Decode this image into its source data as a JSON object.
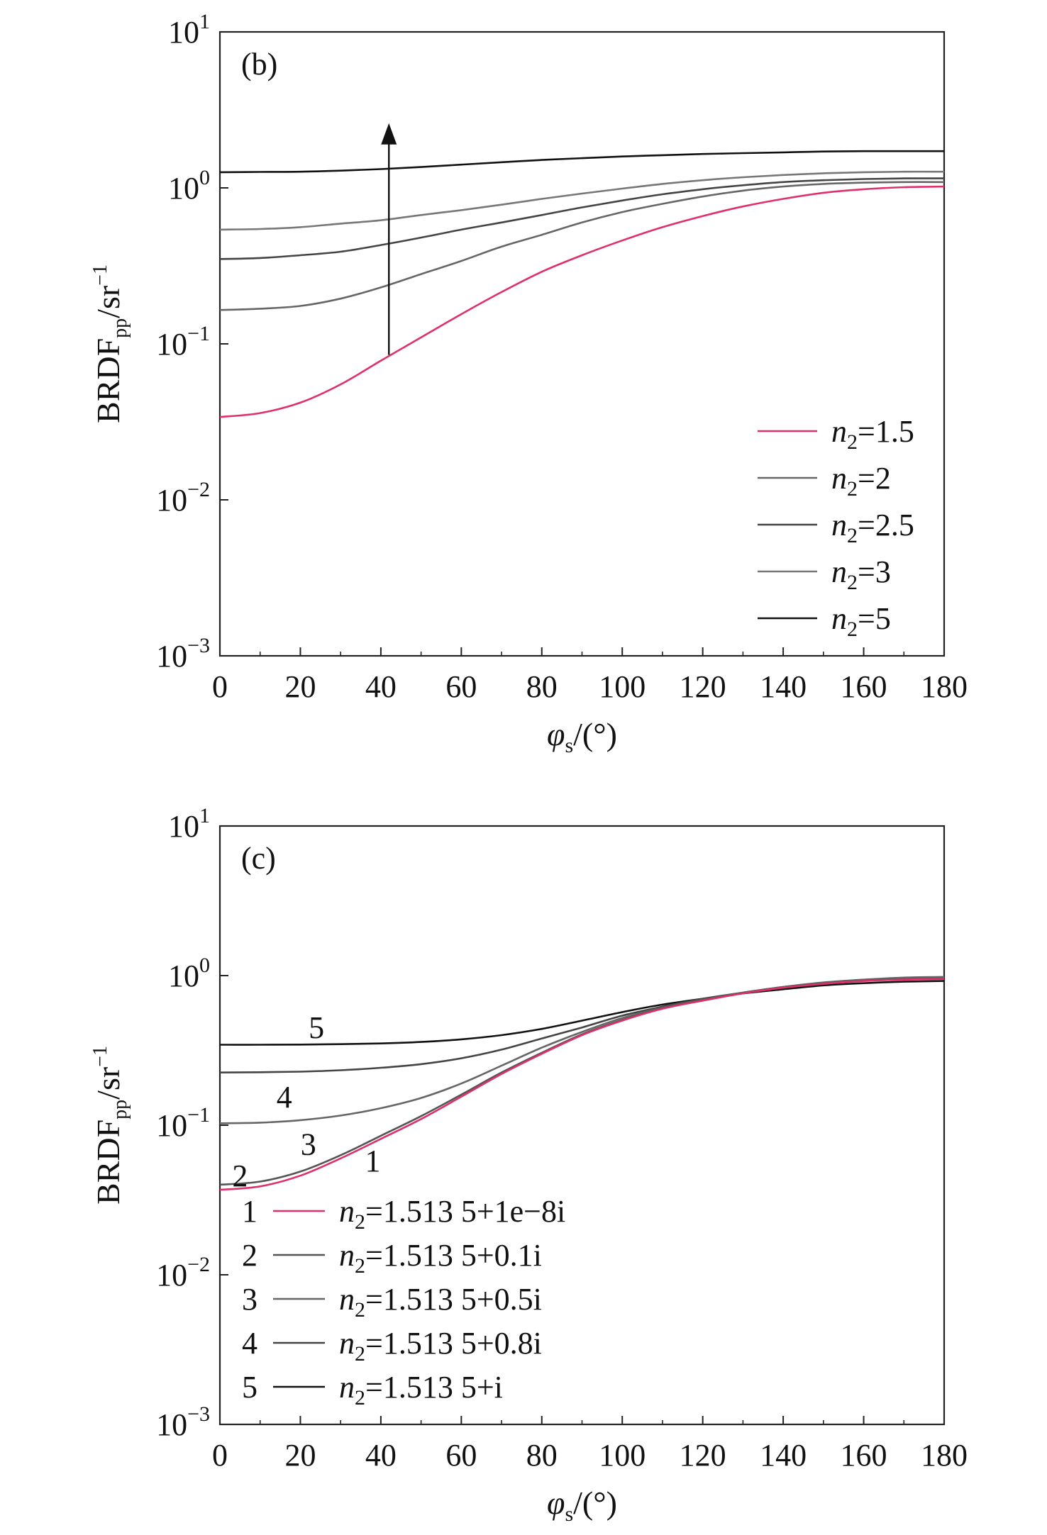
{
  "chart_data": [
    {
      "type": "line",
      "panel_label": "(b)",
      "xlabel": "φs/(°)",
      "xlabel_parts": {
        "symbol": "φ",
        "subscript": "s",
        "unit": "/(°)"
      },
      "ylabel": "BRDFpp/sr−1",
      "ylabel_parts": {
        "base": "BRDF",
        "subscript": "pp",
        "unit": "/sr",
        "superscript": "−1"
      },
      "yscale": "log",
      "xlim": [
        0,
        180
      ],
      "ylim": [
        0.001,
        10
      ],
      "x_ticks": [
        0,
        20,
        40,
        60,
        80,
        100,
        120,
        140,
        160,
        180
      ],
      "y_ticks": [
        {
          "value": 0.001,
          "base": "10",
          "exp": "−3"
        },
        {
          "value": 0.01,
          "base": "10",
          "exp": "−2"
        },
        {
          "value": 0.1,
          "base": "10",
          "exp": "−1"
        },
        {
          "value": 1,
          "base": "10",
          "exp": "0"
        },
        {
          "value": 10,
          "base": "10",
          "exp": "1"
        }
      ],
      "grid": false,
      "legend_position": "bottom-right",
      "arrow": {
        "x": 42,
        "y_from": 0.085,
        "y_to": 2.6
      },
      "x": [
        0,
        10,
        20,
        30,
        40,
        50,
        60,
        70,
        80,
        90,
        100,
        110,
        120,
        130,
        140,
        150,
        160,
        170,
        180
      ],
      "series": [
        {
          "name": "n2=1.5",
          "name_parts": {
            "symbol": "n",
            "subscript": "2",
            "value": "=1.5"
          },
          "color": "#e0306a",
          "values": [
            0.034,
            0.036,
            0.042,
            0.055,
            0.078,
            0.11,
            0.155,
            0.215,
            0.29,
            0.37,
            0.46,
            0.56,
            0.66,
            0.76,
            0.85,
            0.93,
            0.98,
            1.01,
            1.02
          ]
        },
        {
          "name": "n2=2",
          "name_parts": {
            "symbol": "n",
            "subscript": "2",
            "value": "=2"
          },
          "color": "#666666",
          "values": [
            0.165,
            0.168,
            0.175,
            0.195,
            0.23,
            0.28,
            0.34,
            0.42,
            0.5,
            0.6,
            0.7,
            0.79,
            0.88,
            0.96,
            1.02,
            1.06,
            1.08,
            1.09,
            1.09
          ]
        },
        {
          "name": "n2=2.5",
          "name_parts": {
            "symbol": "n",
            "subscript": "2",
            "value": "=2.5"
          },
          "color": "#444444",
          "values": [
            0.35,
            0.355,
            0.37,
            0.39,
            0.43,
            0.48,
            0.54,
            0.6,
            0.67,
            0.75,
            0.83,
            0.91,
            0.98,
            1.04,
            1.09,
            1.12,
            1.14,
            1.15,
            1.15
          ]
        },
        {
          "name": "n2=3",
          "name_parts": {
            "symbol": "n",
            "subscript": "2",
            "value": "=3"
          },
          "color": "#777777",
          "values": [
            0.54,
            0.545,
            0.56,
            0.59,
            0.62,
            0.67,
            0.72,
            0.78,
            0.85,
            0.92,
            0.99,
            1.06,
            1.12,
            1.17,
            1.21,
            1.24,
            1.26,
            1.27,
            1.27
          ]
        },
        {
          "name": "n2=5",
          "name_parts": {
            "symbol": "n",
            "subscript": "2",
            "value": "=5"
          },
          "color": "#111111",
          "values": [
            1.26,
            1.265,
            1.27,
            1.29,
            1.32,
            1.36,
            1.41,
            1.46,
            1.51,
            1.55,
            1.59,
            1.62,
            1.65,
            1.67,
            1.69,
            1.71,
            1.72,
            1.72,
            1.72
          ]
        }
      ]
    },
    {
      "type": "line",
      "panel_label": "(c)",
      "xlabel": "φs/(°)",
      "xlabel_parts": {
        "symbol": "φ",
        "subscript": "s",
        "unit": "/(°)"
      },
      "ylabel": "BRDFpp/sr−1",
      "ylabel_parts": {
        "base": "BRDF",
        "subscript": "pp",
        "unit": "/sr",
        "superscript": "−1"
      },
      "yscale": "log",
      "xlim": [
        0,
        180
      ],
      "ylim": [
        0.001,
        10
      ],
      "x_ticks": [
        0,
        20,
        40,
        60,
        80,
        100,
        120,
        140,
        160,
        180
      ],
      "y_ticks": [
        {
          "value": 0.001,
          "base": "10",
          "exp": "−3"
        },
        {
          "value": 0.01,
          "base": "10",
          "exp": "−2"
        },
        {
          "value": 0.1,
          "base": "10",
          "exp": "−1"
        },
        {
          "value": 1,
          "base": "10",
          "exp": "0"
        },
        {
          "value": 10,
          "base": "10",
          "exp": "1"
        }
      ],
      "grid": false,
      "legend_position": "bottom-left",
      "x": [
        0,
        10,
        20,
        30,
        40,
        50,
        60,
        70,
        80,
        90,
        100,
        110,
        120,
        130,
        140,
        150,
        160,
        170,
        180
      ],
      "series": [
        {
          "id": "1",
          "name": "n2=1.513 5+1e−8i",
          "name_parts": {
            "symbol": "n",
            "subscript": "2",
            "value": "=1.513 5+1e−8i"
          },
          "color": "#e0306a",
          "label_at": {
            "x": 38,
            "y": 0.058
          },
          "values": [
            0.037,
            0.039,
            0.046,
            0.06,
            0.081,
            0.11,
            0.155,
            0.22,
            0.3,
            0.4,
            0.5,
            0.6,
            0.68,
            0.76,
            0.83,
            0.88,
            0.92,
            0.94,
            0.95
          ]
        },
        {
          "id": "2",
          "name": "n2=1.513 5+0.1i",
          "name_parts": {
            "symbol": "n",
            "subscript": "2",
            "value": "=1.513 5+0.1i"
          },
          "color": "#555555",
          "label_at": {
            "x": 5,
            "y": 0.046
          },
          "values": [
            0.04,
            0.042,
            0.049,
            0.063,
            0.085,
            0.115,
            0.16,
            0.225,
            0.305,
            0.405,
            0.505,
            0.605,
            0.685,
            0.765,
            0.835,
            0.885,
            0.925,
            0.945,
            0.955
          ]
        },
        {
          "id": "3",
          "name": "n2=1.513 5+0.5i",
          "name_parts": {
            "symbol": "n",
            "subscript": "2",
            "value": "=1.513 5+0.5i"
          },
          "color": "#666666",
          "label_at": {
            "x": 22,
            "y": 0.075
          },
          "values": [
            0.103,
            0.104,
            0.108,
            0.116,
            0.13,
            0.152,
            0.19,
            0.25,
            0.33,
            0.42,
            0.52,
            0.61,
            0.69,
            0.77,
            0.84,
            0.9,
            0.94,
            0.97,
            0.98
          ]
        },
        {
          "id": "4",
          "name": "n2=1.513 5+0.8i",
          "name_parts": {
            "symbol": "n",
            "subscript": "2",
            "value": "=1.513 5+0.8i"
          },
          "color": "#444444",
          "label_at": {
            "x": 16,
            "y": 0.155
          },
          "values": [
            0.225,
            0.226,
            0.228,
            0.233,
            0.242,
            0.256,
            0.28,
            0.32,
            0.38,
            0.45,
            0.54,
            0.62,
            0.7,
            0.77,
            0.84,
            0.89,
            0.93,
            0.95,
            0.96
          ]
        },
        {
          "id": "5",
          "name": "n2=1.513 5+i",
          "name_parts": {
            "symbol": "n",
            "subscript": "2",
            "value": "=1.513 5+i"
          },
          "color": "#111111",
          "label_at": {
            "x": 24,
            "y": 0.45
          },
          "values": [
            0.345,
            0.345,
            0.346,
            0.348,
            0.352,
            0.36,
            0.375,
            0.4,
            0.44,
            0.5,
            0.57,
            0.64,
            0.7,
            0.76,
            0.81,
            0.86,
            0.89,
            0.91,
            0.92
          ]
        }
      ]
    }
  ]
}
